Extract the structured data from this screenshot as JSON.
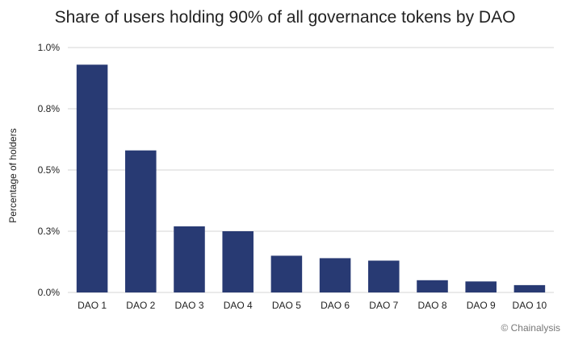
{
  "chart_data": {
    "type": "bar",
    "title": "Share of users holding 90% of all governance tokens by DAO",
    "xlabel": "",
    "ylabel": "Percentage of holders",
    "categories": [
      "DAO 1",
      "DAO 2",
      "DAO 3",
      "DAO 4",
      "DAO 5",
      "DAO 6",
      "DAO 7",
      "DAO 8",
      "DAO 9",
      "DAO 10"
    ],
    "values": [
      0.93,
      0.58,
      0.27,
      0.25,
      0.15,
      0.14,
      0.13,
      0.05,
      0.045,
      0.03
    ],
    "ylim": [
      0,
      1.0
    ],
    "yticks": [
      0.0,
      0.25,
      0.5,
      0.75,
      1.0
    ],
    "ytick_labels": [
      "0.0%",
      "0.3%",
      "0.5%",
      "0.8%",
      "1.0%"
    ],
    "grid": true,
    "legend": "none",
    "bar_color": "#283a73",
    "grid_color": "#d6d6d6"
  },
  "source": "© Chainalysis"
}
